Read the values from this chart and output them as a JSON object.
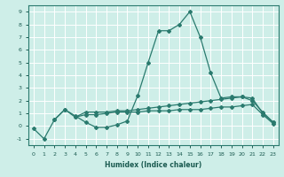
{
  "xlabel": "Humidex (Indice chaleur)",
  "background_color": "#ceeee8",
  "grid_color": "#ffffff",
  "line_color": "#2a7a6e",
  "x": [
    0,
    1,
    2,
    3,
    4,
    5,
    6,
    7,
    8,
    9,
    10,
    11,
    12,
    13,
    14,
    15,
    16,
    17,
    18,
    19,
    20,
    21,
    22,
    23
  ],
  "line1_y": [
    -0.2,
    -1.0,
    0.5,
    1.3,
    0.8,
    0.3,
    -0.1,
    -0.1,
    0.1,
    0.4,
    2.4,
    5.0,
    7.5,
    7.5,
    8.0,
    9.0,
    7.0,
    4.2,
    2.2,
    2.3,
    2.3,
    2.0,
    1.1,
    0.3
  ],
  "line2_x": [
    2,
    3,
    4,
    5,
    6,
    7,
    8,
    9,
    10,
    11,
    12,
    13,
    14,
    15,
    16,
    17,
    18,
    19,
    20,
    21,
    22,
    23
  ],
  "line2_y": [
    0.5,
    1.3,
    0.7,
    1.1,
    1.1,
    1.1,
    1.2,
    1.2,
    1.3,
    1.4,
    1.5,
    1.6,
    1.7,
    1.8,
    1.9,
    2.0,
    2.1,
    2.2,
    2.3,
    2.2,
    1.0,
    0.3
  ],
  "line3_x": [
    4,
    5,
    6,
    7,
    8,
    9,
    10,
    11,
    12,
    13,
    14,
    15,
    16,
    17,
    18,
    19,
    20,
    21,
    22,
    23
  ],
  "line3_y": [
    0.7,
    0.9,
    0.9,
    1.0,
    1.1,
    1.1,
    1.1,
    1.2,
    1.2,
    1.2,
    1.3,
    1.3,
    1.3,
    1.4,
    1.5,
    1.5,
    1.6,
    1.7,
    0.9,
    0.2
  ],
  "ylim": [
    -1.5,
    9.5
  ],
  "xlim": [
    -0.5,
    23.5
  ],
  "yticks": [
    -1,
    0,
    1,
    2,
    3,
    4,
    5,
    6,
    7,
    8,
    9
  ],
  "figsize": [
    3.2,
    2.0
  ],
  "dpi": 100
}
